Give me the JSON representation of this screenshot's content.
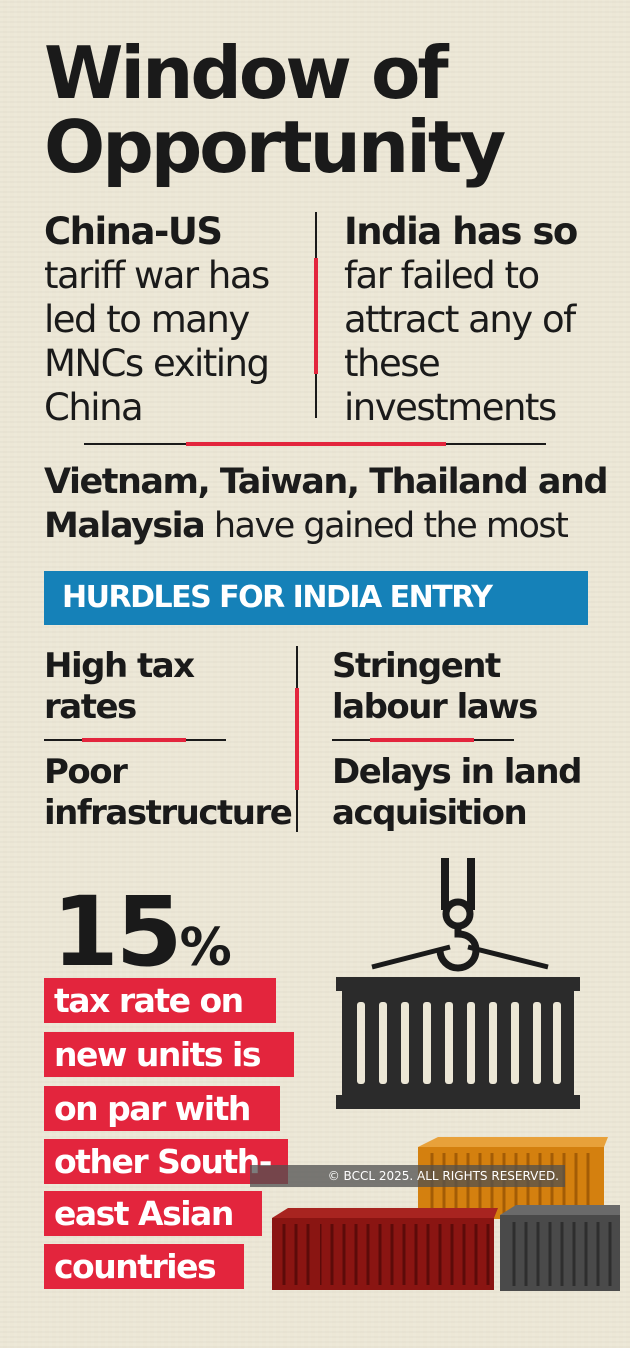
{
  "title": {
    "line1": "Window of",
    "line2": "Opportunity"
  },
  "left_column": {
    "bold": "China-US",
    "rest": "tariff war has led to many MNCs exiting China"
  },
  "right_column": {
    "bold": "India has so",
    "rest": "far failed to attract any of these investments"
  },
  "gainers": {
    "bold_part1": "Vietnam, Taiwan, Thailand and",
    "bold_part2": "Malaysia",
    "rest": " have gained the most"
  },
  "banner": {
    "label": "HURDLES FOR INDIA ENTRY"
  },
  "hurdles": {
    "top_left": "High tax rates",
    "bottom_left": "Poor infrastructure",
    "top_right": "Stringent labour laws",
    "bottom_right": "Delays in land acquisition"
  },
  "stat": {
    "number": "15",
    "unit": "%",
    "lines": [
      "tax rate on",
      "new units is",
      "on par with",
      "other South-",
      "east Asian",
      "countries"
    ]
  },
  "copyright": "© BCCL 2025. ALL RIGHTS RESERVED.",
  "colors": {
    "background": "#ece7d6",
    "accent_red": "#e3253d",
    "banner_blue": "#1581b8",
    "text": "#1a1a1a",
    "container_dark": "#2b2b2b",
    "container_orange": "#d4800f",
    "container_maroon": "#8a1512",
    "container_grey": "#4a4a4a"
  }
}
